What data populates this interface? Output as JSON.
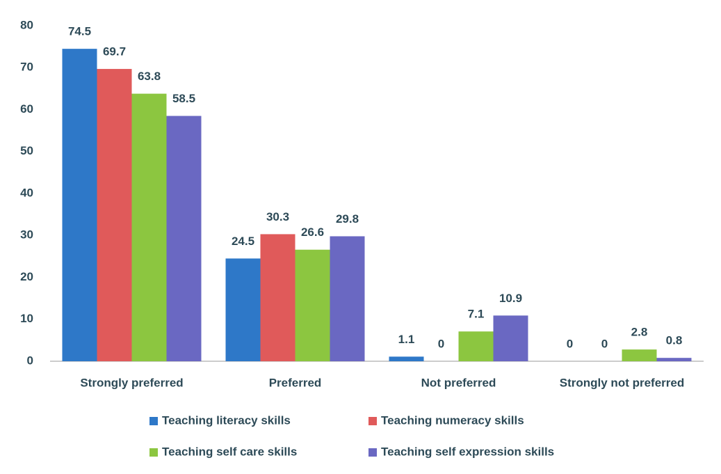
{
  "chart_data": {
    "type": "bar",
    "categories": [
      "Strongly preferred",
      "Preferred",
      "Not preferred",
      "Strongly not preferred"
    ],
    "series": [
      {
        "name": "Teaching literacy skills",
        "color": "#2e78c8",
        "values": [
          74.5,
          24.5,
          1.1,
          0
        ]
      },
      {
        "name": "Teaching numeracy skills",
        "color": "#e05a5a",
        "values": [
          69.7,
          30.3,
          0,
          0
        ]
      },
      {
        "name": "Teaching self care skills",
        "color": "#8cc640",
        "values": [
          63.8,
          26.6,
          7.1,
          2.8
        ]
      },
      {
        "name": "Teaching self expression skills",
        "color": "#6a68c2",
        "values": [
          58.5,
          29.8,
          10.9,
          0.8
        ]
      }
    ],
    "ylim": [
      0,
      80
    ],
    "yticks": [
      0,
      10,
      20,
      30,
      40,
      50,
      60,
      70,
      80
    ],
    "grid": false,
    "legend": "bottom"
  }
}
